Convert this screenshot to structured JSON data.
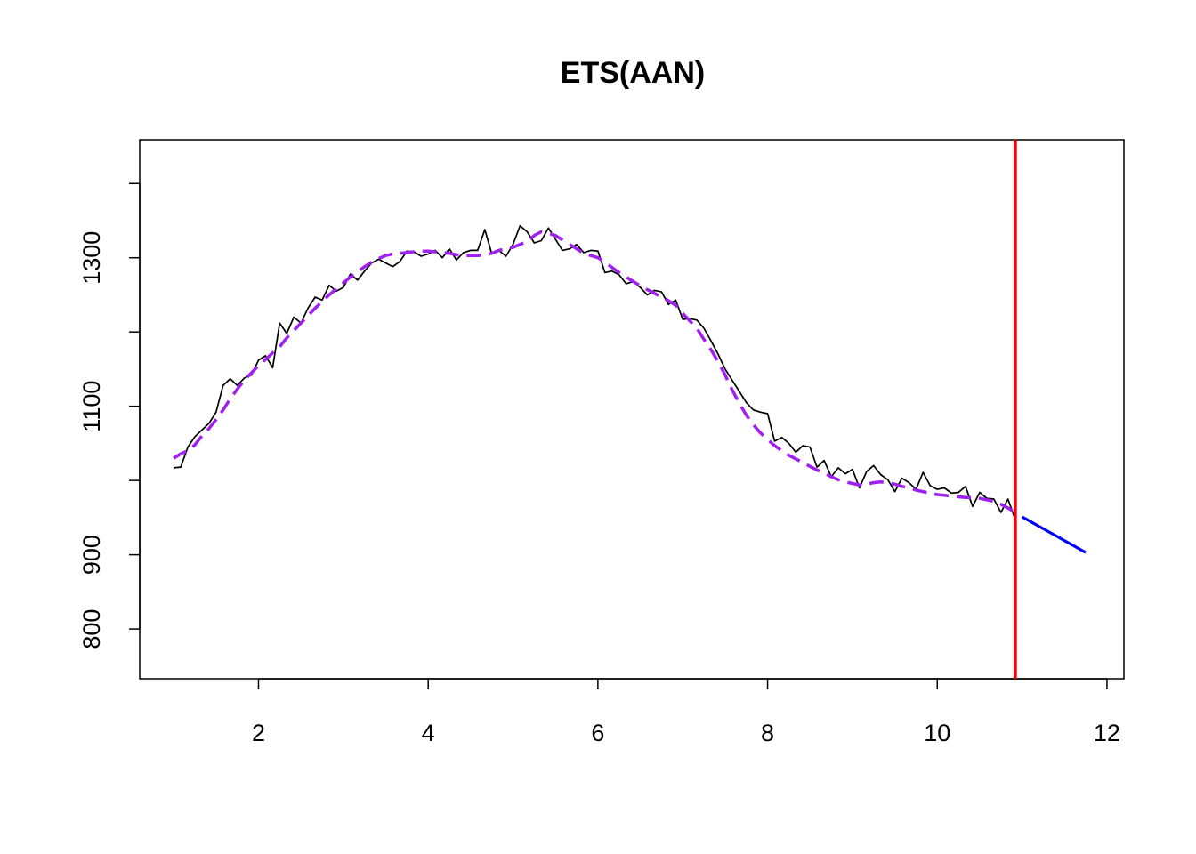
{
  "chart_data": {
    "type": "line",
    "title": "ETS(AAN)",
    "xlabel": "",
    "ylabel": "",
    "xlim": [
      0.6,
      12.2
    ],
    "ylim": [
      733,
      1459
    ],
    "x_ticks": [
      2,
      4,
      6,
      8,
      10,
      12
    ],
    "y_ticks": [
      800,
      900,
      1100,
      1300
    ],
    "y_tick_labels": [
      "800",
      "900",
      "1100",
      "1300"
    ],
    "grid": false,
    "legend": "none",
    "colors": {
      "actual": "#000000",
      "fitted": "#a020f0",
      "forecast_origin": "#ff0000",
      "forecast": "#0000ff"
    },
    "series": [
      {
        "style": "solid",
        "x": [
          1.0,
          1.083,
          1.167,
          1.25,
          1.333,
          1.417,
          1.5,
          1.583,
          1.667,
          1.75,
          1.833,
          1.917,
          2.0,
          2.083,
          2.167,
          2.25,
          2.333,
          2.417,
          2.5,
          2.583,
          2.667,
          2.75,
          2.833,
          2.917,
          3.0,
          3.083,
          3.167,
          3.25,
          3.333,
          3.417,
          3.5,
          3.583,
          3.667,
          3.75,
          3.833,
          3.917,
          4.0,
          4.083,
          4.167,
          4.25,
          4.333,
          4.417,
          4.5,
          4.583,
          4.667,
          4.75,
          4.833,
          4.917,
          5.0,
          5.083,
          5.167,
          5.25,
          5.333,
          5.417,
          5.5,
          5.583,
          5.667,
          5.75,
          5.833,
          5.917,
          6.0,
          6.083,
          6.167,
          6.25,
          6.333,
          6.417,
          6.5,
          6.583,
          6.667,
          6.75,
          6.833,
          6.917,
          7.0,
          7.083,
          7.167,
          7.25,
          7.333,
          7.417,
          7.5,
          7.583,
          7.667,
          7.75,
          7.833,
          7.917,
          8.0,
          8.083,
          8.167,
          8.25,
          8.333,
          8.417,
          8.5,
          8.583,
          8.667,
          8.75,
          8.833,
          8.917,
          9.0,
          9.083,
          9.167,
          9.25,
          9.333,
          9.417,
          9.5,
          9.583,
          9.667,
          9.75,
          9.833,
          9.917,
          10.0,
          10.083,
          10.167,
          10.25,
          10.333,
          10.417,
          10.5,
          10.583,
          10.667,
          10.75,
          10.833,
          10.917
        ],
        "y": [
          1017,
          1018,
          1045,
          1059,
          1068,
          1077,
          1092,
          1128,
          1137,
          1128,
          1138,
          1142,
          1162,
          1168,
          1152,
          1212,
          1198,
          1220,
          1212,
          1232,
          1247,
          1243,
          1263,
          1255,
          1260,
          1278,
          1270,
          1282,
          1293,
          1298,
          1293,
          1288,
          1295,
          1309,
          1308,
          1302,
          1305,
          1310,
          1300,
          1312,
          1297,
          1307,
          1310,
          1310,
          1338,
          1305,
          1310,
          1302,
          1318,
          1343,
          1335,
          1320,
          1323,
          1340,
          1325,
          1310,
          1312,
          1318,
          1307,
          1310,
          1309,
          1280,
          1282,
          1277,
          1265,
          1268,
          1260,
          1250,
          1256,
          1254,
          1237,
          1243,
          1217,
          1218,
          1216,
          1205,
          1188,
          1170,
          1150,
          1135,
          1120,
          1105,
          1095,
          1092,
          1090,
          1053,
          1058,
          1050,
          1038,
          1047,
          1045,
          1018,
          1027,
          1005,
          1017,
          1009,
          1015,
          990,
          1012,
          1020,
          1008,
          1001,
          985,
          1003,
          997,
          988,
          1011,
          993,
          988,
          990,
          983,
          984,
          992,
          965,
          984,
          976,
          975,
          957,
          975,
          948
        ],
        "color": "#000000"
      },
      {
        "style": "dashed",
        "x": [
          1.0,
          1.083,
          1.167,
          1.25,
          1.333,
          1.417,
          1.5,
          1.583,
          1.667,
          1.75,
          1.833,
          1.917,
          2.0,
          2.083,
          2.167,
          2.25,
          2.333,
          2.417,
          2.5,
          2.583,
          2.667,
          2.75,
          2.833,
          2.917,
          3.0,
          3.083,
          3.167,
          3.25,
          3.333,
          3.417,
          3.5,
          3.583,
          3.667,
          3.75,
          3.833,
          3.917,
          4.0,
          4.083,
          4.167,
          4.25,
          4.333,
          4.417,
          4.5,
          4.583,
          4.667,
          4.75,
          4.833,
          4.917,
          5.0,
          5.083,
          5.167,
          5.25,
          5.333,
          5.417,
          5.5,
          5.583,
          5.667,
          5.75,
          5.833,
          5.917,
          6.0,
          6.083,
          6.167,
          6.25,
          6.333,
          6.417,
          6.5,
          6.583,
          6.667,
          6.75,
          6.833,
          6.917,
          7.0,
          7.083,
          7.167,
          7.25,
          7.333,
          7.417,
          7.5,
          7.583,
          7.667,
          7.75,
          7.833,
          7.917,
          8.0,
          8.083,
          8.167,
          8.25,
          8.333,
          8.417,
          8.5,
          8.583,
          8.667,
          8.75,
          8.833,
          8.917,
          9.0,
          9.083,
          9.167,
          9.25,
          9.333,
          9.417,
          9.5,
          9.583,
          9.667,
          9.75,
          9.833,
          9.917,
          10.0,
          10.083,
          10.167,
          10.25,
          10.333,
          10.417,
          10.5,
          10.583,
          10.667,
          10.75,
          10.833,
          10.917
        ],
        "y": [
          1030,
          1036,
          1040,
          1048,
          1060,
          1070,
          1082,
          1095,
          1110,
          1123,
          1135,
          1145,
          1155,
          1163,
          1172,
          1180,
          1192,
          1202,
          1212,
          1222,
          1232,
          1241,
          1250,
          1258,
          1266,
          1274,
          1281,
          1288,
          1294,
          1299,
          1303,
          1305,
          1306,
          1307,
          1308,
          1309,
          1309,
          1308,
          1307,
          1306,
          1304,
          1303,
          1303,
          1303,
          1304,
          1306,
          1310,
          1312,
          1314,
          1318,
          1322,
          1330,
          1335,
          1333,
          1330,
          1324,
          1318,
          1312,
          1306,
          1303,
          1300,
          1294,
          1287,
          1280,
          1274,
          1268,
          1262,
          1257,
          1252,
          1247,
          1242,
          1236,
          1225,
          1215,
          1205,
          1190,
          1176,
          1160,
          1142,
          1122,
          1104,
          1088,
          1075,
          1064,
          1055,
          1047,
          1040,
          1034,
          1029,
          1024,
          1019,
          1014,
          1010,
          1005,
          1001,
          998,
          996,
          994,
          995,
          997,
          998,
          997,
          995,
          992,
          990,
          987,
          985,
          983,
          981,
          980,
          979,
          978,
          977,
          977,
          976,
          974,
          972,
          968,
          963,
          957
        ],
        "color": "#a020f0"
      },
      {
        "style": "solid",
        "x": [
          11.0,
          11.75
        ],
        "y": [
          951,
          903
        ],
        "color": "#0000ff"
      }
    ],
    "vlines": [
      10.92
    ]
  }
}
